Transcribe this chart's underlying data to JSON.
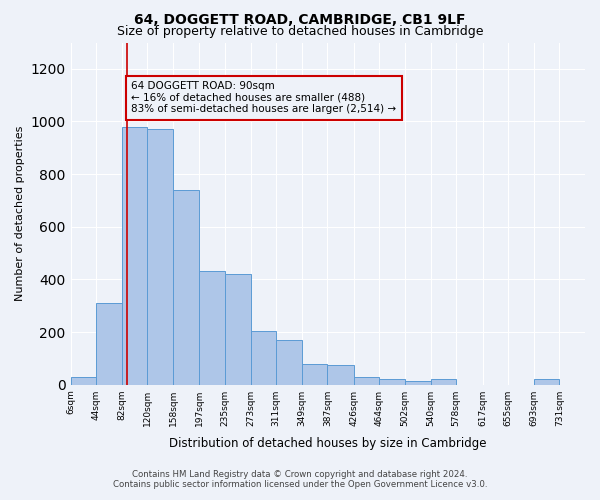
{
  "title1": "64, DOGGETT ROAD, CAMBRIDGE, CB1 9LF",
  "title2": "Size of property relative to detached houses in Cambridge",
  "xlabel": "Distribution of detached houses by size in Cambridge",
  "ylabel": "Number of detached properties",
  "footer1": "Contains HM Land Registry data © Crown copyright and database right 2024.",
  "footer2": "Contains public sector information licensed under the Open Government Licence v3.0.",
  "annotation_title": "64 DOGGETT ROAD: 90sqm",
  "annotation_line1": "← 16% of detached houses are smaller (488)",
  "annotation_line2": "83% of semi-detached houses are larger (2,514) →",
  "property_size": 90,
  "bar_edges": [
    6,
    44,
    82,
    120,
    158,
    197,
    235,
    273,
    311,
    349,
    387,
    426,
    464,
    502,
    540,
    578,
    617,
    655,
    693,
    731,
    769
  ],
  "bar_heights": [
    30,
    310,
    980,
    970,
    740,
    430,
    420,
    205,
    170,
    80,
    75,
    30,
    20,
    15,
    20,
    0,
    0,
    0,
    20,
    0
  ],
  "bar_color": "#aec6e8",
  "bar_edge_color": "#5b9bd5",
  "vline_color": "#cc0000",
  "vline_x": 90,
  "ylim": [
    0,
    1300
  ],
  "yticks": [
    0,
    200,
    400,
    600,
    800,
    1000,
    1200
  ],
  "annotation_box_color": "#cc0000",
  "bg_color": "#eef2f9",
  "grid_color": "#ffffff"
}
